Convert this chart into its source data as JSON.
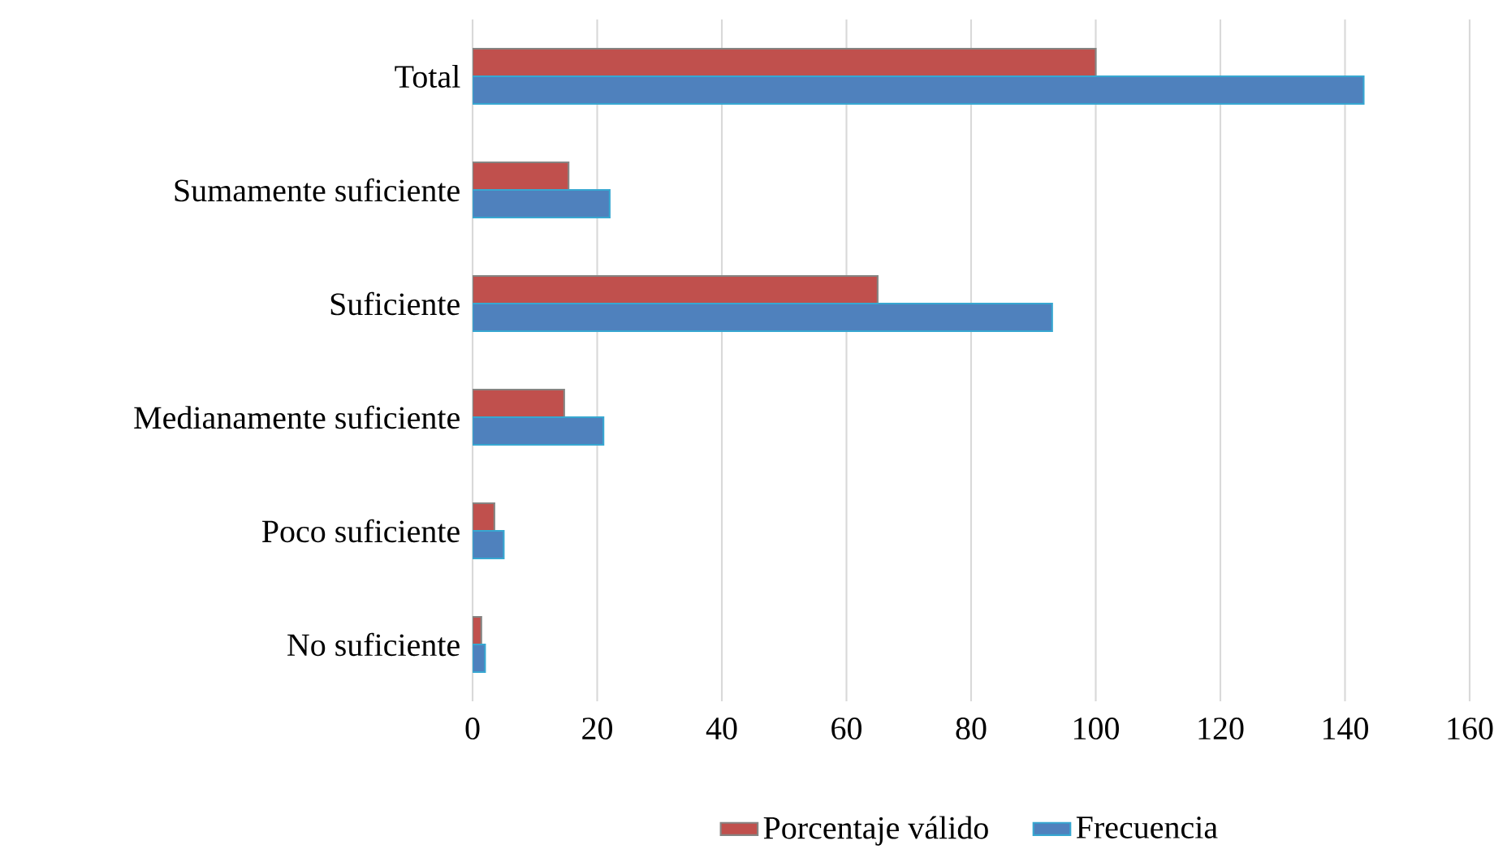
{
  "chart_data": {
    "type": "bar",
    "orientation": "horizontal",
    "categories": [
      "Total",
      "Sumamente suficiente",
      "Suficiente",
      "Medianamente suficiente",
      "Poco suficiente",
      "No suficiente"
    ],
    "series": [
      {
        "name": "Porcentaje válido",
        "color": "#c0504d",
        "values": [
          100,
          15.4,
          65.0,
          14.7,
          3.5,
          1.4
        ]
      },
      {
        "name": "Frecuencia",
        "color": "#4f81bd",
        "values": [
          143,
          22,
          93,
          21,
          5,
          2
        ]
      }
    ],
    "xlim": [
      0,
      160
    ],
    "xticks": [
      0,
      20,
      40,
      60,
      80,
      100,
      120,
      140,
      160
    ],
    "grid": "x",
    "legend": "bottom"
  }
}
